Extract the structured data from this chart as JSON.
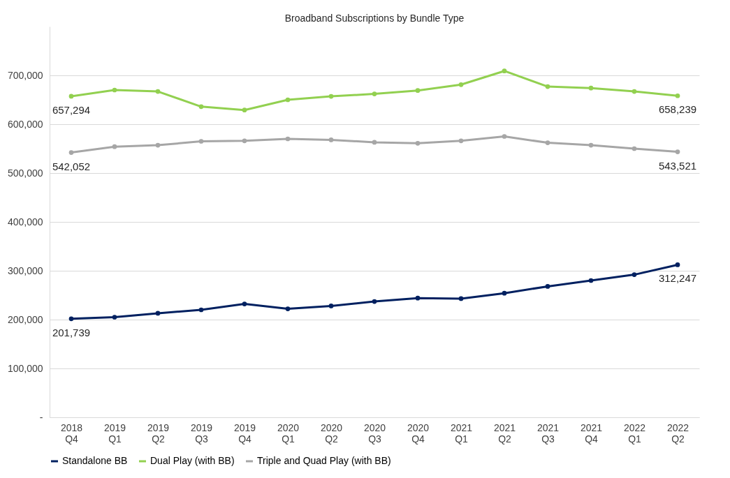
{
  "chart_data": {
    "type": "line",
    "title": "Broadband Subscriptions by Bundle Type",
    "categories": [
      "2018 Q4",
      "2019 Q1",
      "2019 Q2",
      "2019 Q3",
      "2019 Q4",
      "2020 Q1",
      "2020 Q2",
      "2020 Q3",
      "2020 Q4",
      "2021 Q1",
      "2021 Q2",
      "2021 Q3",
      "2021 Q4",
      "2022 Q1",
      "2022 Q2"
    ],
    "series": [
      {
        "name": "Standalone BB",
        "color": "#002060",
        "values": [
          201739,
          205000,
          213000,
          220000,
          232000,
          222000,
          228000,
          237000,
          244000,
          243000,
          254000,
          268000,
          280000,
          292000,
          312247
        ],
        "value_labels": [
          "201,739",
          null,
          null,
          null,
          null,
          null,
          null,
          null,
          null,
          null,
          null,
          null,
          null,
          null,
          "312,247"
        ]
      },
      {
        "name": "Dual Play (with BB)",
        "color": "#92d050",
        "values": [
          657294,
          670000,
          667000,
          636000,
          629000,
          650000,
          657000,
          662000,
          669000,
          681000,
          709000,
          677000,
          674000,
          667000,
          658239
        ],
        "value_labels": [
          "657,294",
          null,
          null,
          null,
          null,
          null,
          null,
          null,
          null,
          null,
          null,
          null,
          null,
          null,
          "658,239"
        ]
      },
      {
        "name": "Triple and Quad Play (with BB)",
        "color": "#a6a6a6",
        "values": [
          542052,
          554000,
          557000,
          565000,
          566000,
          570000,
          568000,
          563000,
          561000,
          566000,
          575000,
          562000,
          557000,
          550000,
          543521
        ],
        "value_labels": [
          "542,052",
          null,
          null,
          null,
          null,
          null,
          null,
          null,
          null,
          null,
          null,
          null,
          null,
          null,
          "543,521"
        ]
      }
    ],
    "ylim": [
      0,
      800000
    ],
    "yticks": [
      {
        "value": 0,
        "label": "-"
      },
      {
        "value": 100000,
        "label": "100,000"
      },
      {
        "value": 200000,
        "label": "200,000"
      },
      {
        "value": 300000,
        "label": "300,000"
      },
      {
        "value": 400000,
        "label": "400,000"
      },
      {
        "value": 500000,
        "label": "500,000"
      },
      {
        "value": 600000,
        "label": "600,000"
      },
      {
        "value": 700000,
        "label": "700,000"
      }
    ],
    "grid": "y",
    "legend": "bottom",
    "marker": "circle",
    "line_style": "solid"
  }
}
